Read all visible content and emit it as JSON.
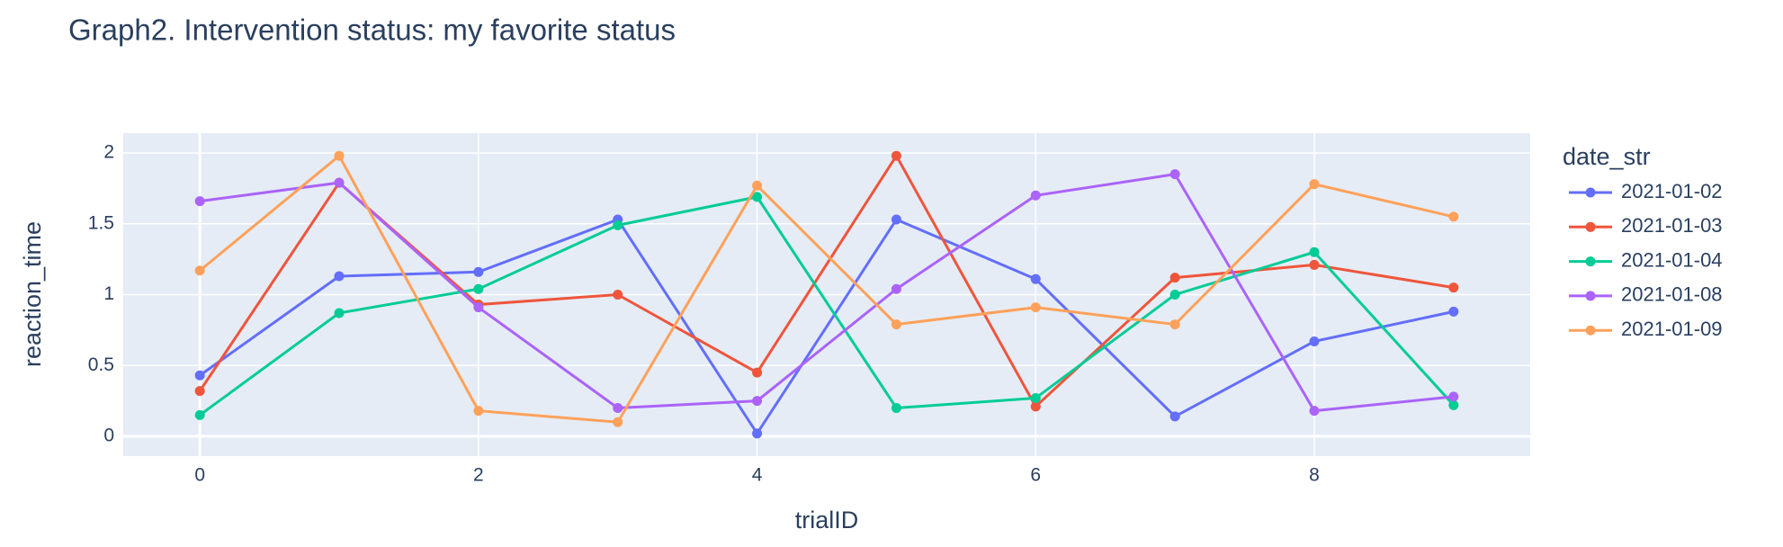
{
  "chart_data": {
    "type": "line",
    "title": "Graph2. Intervention status: my favorite status",
    "x_label": "trialID",
    "y_label": "reaction_time",
    "legend_title": "date_str",
    "x": [
      0,
      1,
      2,
      3,
      4,
      5,
      6,
      7,
      8,
      9
    ],
    "series": [
      {
        "name": "2021-01-02",
        "color": "#636efa",
        "values": [
          0.43,
          1.13,
          1.16,
          1.53,
          0.02,
          1.53,
          1.11,
          0.14,
          0.67,
          0.88
        ]
      },
      {
        "name": "2021-01-03",
        "color": "#ef553b",
        "values": [
          0.32,
          1.79,
          0.93,
          1.0,
          0.45,
          1.98,
          0.21,
          1.12,
          1.21,
          1.05
        ]
      },
      {
        "name": "2021-01-04",
        "color": "#00cc96",
        "values": [
          0.15,
          0.87,
          1.04,
          1.49,
          1.69,
          0.2,
          0.27,
          1.0,
          1.3,
          0.22
        ]
      },
      {
        "name": "2021-01-08",
        "color": "#ab63fa",
        "values": [
          1.66,
          1.79,
          0.91,
          0.2,
          0.25,
          1.04,
          1.7,
          1.85,
          0.18,
          0.28
        ]
      },
      {
        "name": "2021-01-09",
        "color": "#ffa15a",
        "values": [
          1.17,
          1.98,
          0.18,
          0.1,
          1.77,
          0.79,
          0.91,
          0.79,
          1.78,
          1.55
        ]
      }
    ],
    "xlim": [
      -0.55,
      9.55
    ],
    "xticks": [
      0,
      2,
      4,
      6,
      8
    ],
    "ylim": [
      -0.14,
      2.14
    ],
    "yticks": [
      0,
      0.5,
      1,
      1.5,
      2
    ],
    "grid": true,
    "legend": "right"
  }
}
